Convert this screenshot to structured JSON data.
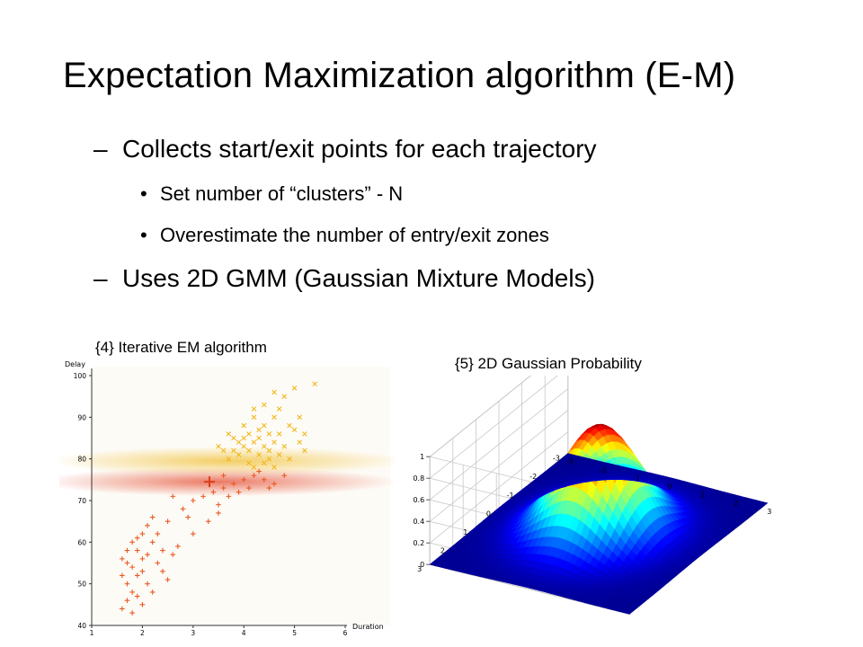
{
  "slide": {
    "title": "Expectation Maximization algorithm (E-M)",
    "bullets": [
      {
        "marker": "–",
        "text": "Collects start/exit points for each trajectory"
      },
      {
        "marker": "•",
        "text": "Set number of “clusters” - N"
      },
      {
        "marker": "•",
        "text": "Overestimate the number of entry/exit zones"
      },
      {
        "marker": "–",
        "text": "Uses 2D GMM (Gaussian Mixture Models)"
      }
    ],
    "caption_left": "{4} Iterative EM algorithm",
    "caption_right": "{5} 2D Gaussian Probability"
  },
  "chart_data": [
    {
      "type": "scatter",
      "xlabel": "Duration",
      "ylabel": "Delay",
      "xlim": [
        1,
        6
      ],
      "ylim": [
        40,
        100
      ],
      "xticks": [
        "1",
        "2",
        "3",
        "4",
        "5",
        "6"
      ],
      "yticks": [
        "40",
        "50",
        "60",
        "70",
        "80",
        "90",
        "100"
      ],
      "series": [
        {
          "marker": "x",
          "color": "#f2b81d",
          "points": [
            [
              3.7,
              80
            ],
            [
              3.8,
              82
            ],
            [
              3.9,
              81
            ],
            [
              4,
              83
            ],
            [
              4.1,
              82
            ],
            [
              4.2,
              84
            ],
            [
              4.3,
              81
            ],
            [
              4.4,
              83
            ],
            [
              4.5,
              82
            ],
            [
              4.6,
              84
            ],
            [
              4.7,
              81
            ],
            [
              4.8,
              83
            ],
            [
              4.5,
              86
            ],
            [
              4.4,
              88
            ],
            [
              4.6,
              90
            ],
            [
              4.7,
              92
            ],
            [
              4.9,
              88
            ],
            [
              5,
              87
            ],
            [
              5.1,
              90
            ],
            [
              4.3,
              87
            ],
            [
              4.1,
              86
            ],
            [
              4.2,
              90
            ],
            [
              4.0,
              85
            ],
            [
              3.9,
              84
            ],
            [
              3.6,
              82
            ],
            [
              3.5,
              83
            ],
            [
              4.8,
              95
            ],
            [
              5.0,
              97
            ],
            [
              4.6,
              96
            ],
            [
              4.4,
              93
            ],
            [
              4.2,
              92
            ],
            [
              5.2,
              86
            ],
            [
              5.4,
              98
            ],
            [
              4.9,
              80
            ],
            [
              5.2,
              82
            ],
            [
              4.1,
              79
            ],
            [
              4.4,
              79
            ],
            [
              4.6,
              78
            ],
            [
              3.8,
              85
            ],
            [
              4.0,
              88
            ],
            [
              4.3,
              85
            ],
            [
              4.7,
              86
            ],
            [
              4.5,
              80
            ],
            [
              4.2,
              78
            ],
            [
              3.7,
              86
            ],
            [
              5.1,
              84
            ]
          ]
        },
        {
          "marker": "+",
          "color": "#ea5a23",
          "points": [
            [
              1.6,
              44
            ],
            [
              1.7,
              46
            ],
            [
              1.8,
              48
            ],
            [
              1.7,
              50
            ],
            [
              1.9,
              52
            ],
            [
              1.8,
              54
            ],
            [
              2.0,
              56
            ],
            [
              1.9,
              58
            ],
            [
              2.1,
              50
            ],
            [
              2.2,
              48
            ],
            [
              1.6,
              52
            ],
            [
              1.8,
              60
            ],
            [
              2.2,
              60
            ],
            [
              2.3,
              62
            ],
            [
              2.0,
              62
            ],
            [
              1.7,
              58
            ],
            [
              2.1,
              64
            ],
            [
              2.4,
              53
            ],
            [
              2.5,
              51
            ],
            [
              1.9,
              47
            ],
            [
              2.0,
              45
            ],
            [
              1.8,
              43
            ],
            [
              2.6,
              57
            ],
            [
              2.7,
              59
            ],
            [
              2.2,
              66
            ],
            [
              2.5,
              65
            ],
            [
              2.8,
              68
            ],
            [
              3.0,
              70
            ],
            [
              3.2,
              71
            ],
            [
              3.4,
              72
            ],
            [
              3.6,
              73
            ],
            [
              3.8,
              74
            ],
            [
              4.0,
              75
            ],
            [
              4.2,
              76
            ],
            [
              4.4,
              75
            ],
            [
              4.6,
              74
            ],
            [
              3.5,
              69
            ],
            [
              3.7,
              71
            ],
            [
              3.9,
              72
            ],
            [
              4.1,
              73
            ],
            [
              3.3,
              65
            ],
            [
              3.5,
              67
            ],
            [
              2.9,
              66
            ],
            [
              1.6,
              56
            ],
            [
              2.3,
              55
            ],
            [
              2.1,
              57
            ],
            [
              1.9,
              61
            ],
            [
              2.0,
              53
            ],
            [
              1.7,
              55
            ],
            [
              2.4,
              58
            ],
            [
              3.0,
              62
            ],
            [
              4.3,
              77
            ],
            [
              4.5,
              73
            ],
            [
              3.6,
              76
            ],
            [
              4.8,
              76
            ],
            [
              2.6,
              71
            ]
          ]
        }
      ],
      "components": [
        {
          "mean": [
            3.5,
            74.5
          ],
          "color": "#e8624a",
          "weight": "inner"
        },
        {
          "mean": [
            3.7,
            79.5
          ],
          "color": "#f2c64a",
          "weight": "inner"
        }
      ]
    },
    {
      "type": "surface",
      "zticks": [
        "0",
        "0.2",
        "0.4",
        "0.6",
        "0.8",
        "1"
      ],
      "xticks": [
        "-3",
        "-2",
        "-1",
        "0",
        "1",
        "2",
        "3"
      ],
      "yticks": [
        "-3",
        "-2",
        "-1",
        "0",
        "1",
        "2",
        "3"
      ],
      "xlim": [
        -3,
        3
      ],
      "ylim": [
        -3,
        3
      ],
      "zlim": [
        0,
        1
      ],
      "function": "exp(-(x^2+y^2)/2)",
      "grid": true,
      "colormap": "jet"
    }
  ]
}
